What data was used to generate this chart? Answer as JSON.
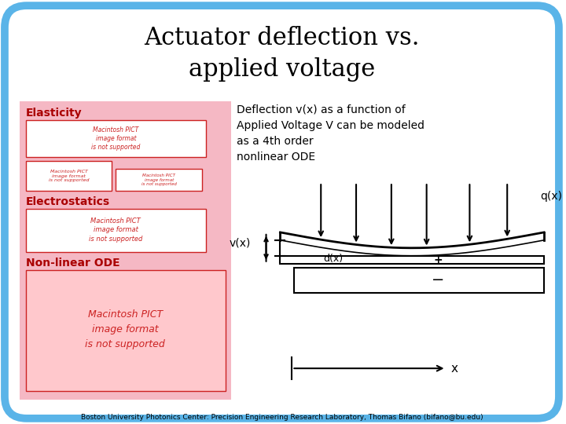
{
  "title_line1": "Actuator deflection vs.",
  "title_line2": "applied voltage",
  "title_fontsize": 22,
  "background_color": "#ffffff",
  "outer_border_color": "#5ab4e8",
  "outer_border_lw": 7,
  "pink_bg": "#f5b8c4",
  "section_label_color": "#aa0000",
  "section_label_fontsize": 10,
  "pict_box_facecolor": "#ffffff",
  "pict_box_border": "#cc2222",
  "pict_text": "Macintosh PICT\nimage format\nis not supported",
  "pict_text_color": "#cc2222",
  "desc_text": "Deflection v(x) as a function of\nApplied Voltage V can be modeled\nas a 4th order\nnonlinear ODE",
  "desc_fontsize": 10,
  "footer_text": "Boston University Photonics Center: Precision Engineering Research Laboratory, Thomas Bifano (bifano@bu.edu)",
  "footer_fontsize": 6.5
}
